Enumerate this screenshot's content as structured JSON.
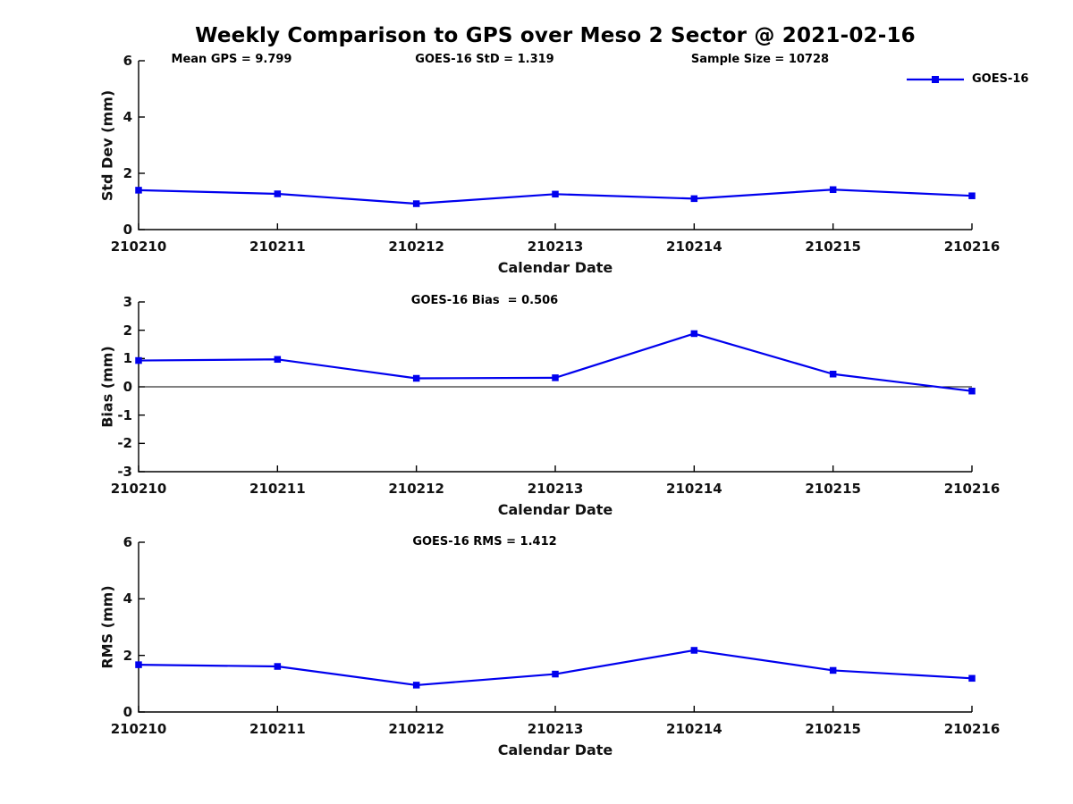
{
  "title": "Weekly Comparison to GPS over Meso 2 Sector @ 2021-02-16",
  "legend": {
    "label": "GOES-16"
  },
  "colors": {
    "series": "#0000EE",
    "axis": "#000000",
    "tick_text": "#111111"
  },
  "chart_data": [
    {
      "type": "line",
      "ylabel": "Std Dev (mm)",
      "xlabel": "Calendar Date",
      "categories": [
        "210210",
        "210211",
        "210212",
        "210213",
        "210214",
        "210215",
        "210216"
      ],
      "series": [
        {
          "name": "GOES-16",
          "color": "#0000EE",
          "marker": "square",
          "values": [
            1.4,
            1.27,
            0.92,
            1.26,
            1.1,
            1.42,
            1.2
          ]
        }
      ],
      "ylim": [
        0,
        6
      ],
      "yticks": [
        0,
        2,
        4,
        6
      ],
      "grid": false,
      "legend_position": "top-right-outside",
      "annotations": [
        "Mean GPS = 9.799",
        "GOES-16 StD = 1.319",
        "Sample Size = 10728"
      ]
    },
    {
      "type": "line",
      "ylabel": "Bias (mm)",
      "xlabel": "Calendar Date",
      "categories": [
        "210210",
        "210211",
        "210212",
        "210213",
        "210214",
        "210215",
        "210216"
      ],
      "series": [
        {
          "name": "GOES-16",
          "color": "#0000EE",
          "marker": "square",
          "values": [
            0.93,
            0.97,
            0.3,
            0.32,
            1.88,
            0.45,
            -0.15
          ]
        }
      ],
      "ylim": [
        -3,
        3
      ],
      "yticks": [
        -3,
        -2,
        -1,
        0,
        1,
        2,
        3
      ],
      "zero_line": true,
      "grid": false,
      "annotations": [
        "GOES-16 Bias  = 0.506"
      ]
    },
    {
      "type": "line",
      "ylabel": "RMS (mm)",
      "xlabel": "Calendar Date",
      "categories": [
        "210210",
        "210211",
        "210212",
        "210213",
        "210214",
        "210215",
        "210216"
      ],
      "series": [
        {
          "name": "GOES-16",
          "color": "#0000EE",
          "marker": "square",
          "values": [
            1.67,
            1.61,
            0.95,
            1.34,
            2.18,
            1.47,
            1.19
          ]
        }
      ],
      "ylim": [
        0,
        6
      ],
      "yticks": [
        0,
        2,
        4,
        6
      ],
      "grid": false,
      "annotations": [
        "GOES-16 RMS = 1.412"
      ]
    }
  ]
}
